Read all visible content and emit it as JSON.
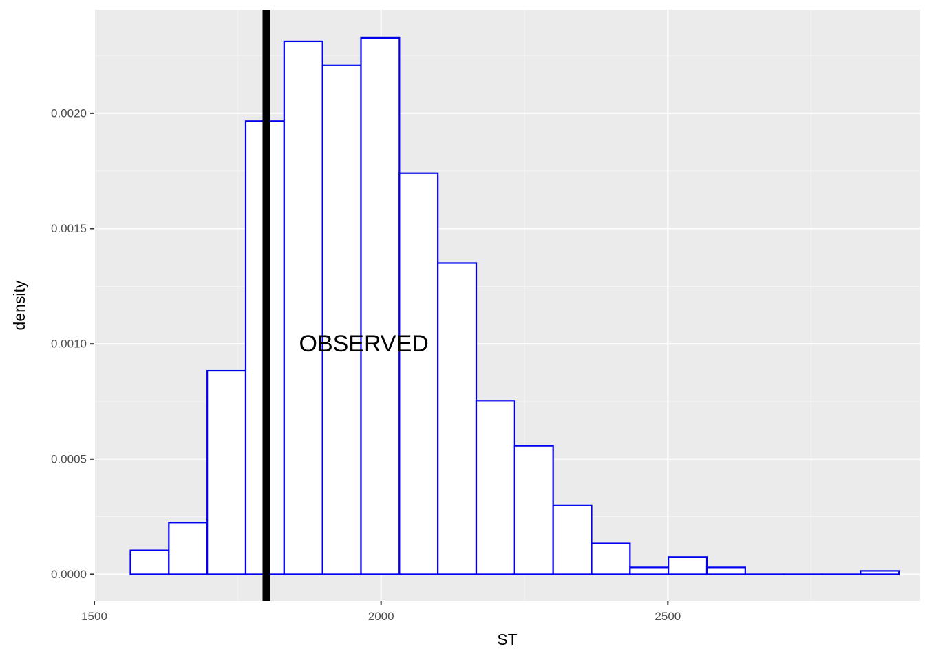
{
  "chart_data": {
    "type": "bar",
    "subtype": "histogram",
    "xlabel": "ST",
    "ylabel": "density",
    "xlim": [
      1500,
      2940
    ],
    "ylim": [
      -0.000115,
      0.00245
    ],
    "x_ticks": [
      1500,
      2000,
      2500
    ],
    "x_tick_labels": [
      "1500",
      "2000",
      "2500"
    ],
    "y_ticks": [
      0,
      0.0005,
      0.001,
      0.0015,
      0.002
    ],
    "y_tick_labels": [
      "0.0000",
      "0.0005",
      "0.0010",
      "0.0015",
      "0.0020"
    ],
    "grid": true,
    "legend": "none",
    "bin_edges": [
      1563,
      1630,
      1697,
      1764,
      1831,
      1898,
      1965,
      2032,
      2099,
      2166,
      2233,
      2300,
      2367,
      2434,
      2501,
      2568,
      2635,
      2702,
      2769,
      2836,
      2903
    ],
    "values": [
      0.000104,
      0.000224,
      0.000884,
      0.001966,
      0.002313,
      0.002209,
      0.002328,
      0.001741,
      0.001351,
      0.000752,
      0.000557,
      0.0003,
      0.000134,
      3e-05,
      7.5e-05,
      3e-05,
      0.0,
      0.0,
      0.0,
      1.5e-05
    ],
    "reference_line": {
      "x": 1800,
      "color": "#000000"
    },
    "annotation": {
      "text": "OBSERVED",
      "x": 1970,
      "y": 0.001
    },
    "colors": {
      "bar_fill": "#ffffff",
      "bar_outline": "#0000ee",
      "panel_background": "#ebebeb",
      "grid_major": "#ffffff",
      "grid_minor": "#f5f5f5"
    }
  }
}
